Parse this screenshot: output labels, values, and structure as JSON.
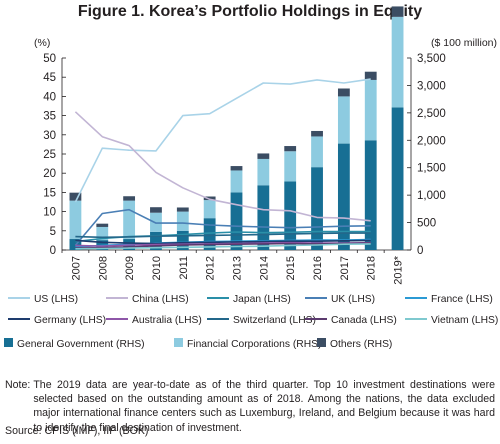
{
  "figure": {
    "title": "Figure 1. Korea’s Portfolio Holdings in Equity",
    "note_label": "Note:",
    "note_text": "The 2019 data are year-to-date as of the third quarter. Top 10 investment destinations were selected based on the outstanding amount as of 2018. Among the nations, the data excluded major international finance centers such as Luxemburg, Ireland, and Belgium because it was hard to identify the final destination of investment.",
    "source": "Source: CPIS (IMF), IIP (BOK)"
  },
  "chart_data": {
    "type": "bar",
    "categories": [
      "2007",
      "2008",
      "2009",
      "2010",
      "2011",
      "2012",
      "2013",
      "2014",
      "2015",
      "2016",
      "2017",
      "2018",
      "2019*"
    ],
    "left_axis": {
      "label": "(%)",
      "ticks": [
        0,
        5,
        10,
        15,
        20,
        25,
        30,
        35,
        40,
        45,
        50
      ],
      "ylim": [
        0,
        50
      ]
    },
    "right_axis": {
      "label": "($ 100 million)",
      "ticks": [
        "0",
        "500",
        "1,000",
        "1,500",
        "2,000",
        "2,500",
        "3,000",
        "3,500"
      ],
      "ylim": [
        0,
        3500
      ]
    },
    "grid": false,
    "legend_position": "bottom",
    "bar_series": [
      {
        "name": "General Government (RHS)",
        "color": "#176f94",
        "values": [
          200,
          180,
          200,
          330,
          350,
          580,
          1050,
          1180,
          1250,
          1510,
          1940,
          2000,
          2600
        ]
      },
      {
        "name": "Financial Corporations (RHS)",
        "color": "#8dcbe0",
        "values": [
          700,
          240,
          700,
          350,
          350,
          330,
          400,
          480,
          550,
          560,
          860,
          1100,
          1650
        ]
      },
      {
        "name": "Others (RHS)",
        "color": "#3b4d63",
        "values": [
          145,
          60,
          80,
          100,
          75,
          65,
          80,
          100,
          95,
          100,
          144,
          150,
          190
        ]
      }
    ],
    "line_series": [
      {
        "name": "US (LHS)",
        "color": "#a9d3e8",
        "values": [
          12.5,
          26.5,
          26.0,
          25.8,
          35.0,
          35.5,
          39.5,
          43.5,
          43.2,
          44.3,
          43.5,
          44.5,
          null
        ]
      },
      {
        "name": "China (LHS)",
        "color": "#c2b5d4",
        "values": [
          36.0,
          29.5,
          27.2,
          20.2,
          16.2,
          13.2,
          11.8,
          10.5,
          10.2,
          8.5,
          8.3,
          7.6,
          null
        ]
      },
      {
        "name": "Japan (LHS)",
        "color": "#2a8fa8",
        "values": [
          2.2,
          3.0,
          3.5,
          3.7,
          4.0,
          4.4,
          4.7,
          4.5,
          4.6,
          4.8,
          4.8,
          4.8,
          null
        ]
      },
      {
        "name": "UK (LHS)",
        "color": "#4a7fb5",
        "values": [
          1.2,
          9.5,
          10.5,
          7.0,
          7.0,
          6.5,
          6.2,
          6.0,
          5.8,
          6.0,
          6.2,
          6.3,
          null
        ]
      },
      {
        "name": "France (LHS)",
        "color": "#2b9ad4",
        "values": [
          0.8,
          1.2,
          1.5,
          1.8,
          2.0,
          2.2,
          2.3,
          2.4,
          2.5,
          2.6,
          2.6,
          2.7,
          null
        ]
      },
      {
        "name": "Germany (LHS)",
        "color": "#1e3c6e",
        "values": [
          2.5,
          2.0,
          1.8,
          1.7,
          1.9,
          2.0,
          2.1,
          2.2,
          2.3,
          2.3,
          2.4,
          2.5,
          null
        ]
      },
      {
        "name": "Australia (LHS)",
        "color": "#8e56a8",
        "values": [
          1.2,
          1.0,
          1.3,
          1.4,
          1.5,
          1.6,
          1.7,
          1.8,
          1.9,
          1.8,
          1.8,
          1.9,
          null
        ]
      },
      {
        "name": "Switzerland (LHS)",
        "color": "#23678a",
        "values": [
          3.5,
          3.3,
          3.4,
          3.6,
          3.7,
          3.8,
          3.9,
          4.0,
          4.2,
          4.3,
          4.4,
          4.4,
          null
        ]
      },
      {
        "name": "Canada (LHS)",
        "color": "#5b3a6e",
        "values": [
          0.5,
          0.6,
          0.8,
          1.1,
          1.3,
          1.4,
          1.5,
          1.6,
          1.7,
          1.6,
          1.7,
          1.8,
          null
        ]
      },
      {
        "name": "Vietnam (LHS)",
        "color": "#7fc9cf",
        "values": [
          0.3,
          0.4,
          0.5,
          0.6,
          0.7,
          0.8,
          0.9,
          1.0,
          1.2,
          1.3,
          1.5,
          1.6,
          null
        ]
      }
    ]
  }
}
